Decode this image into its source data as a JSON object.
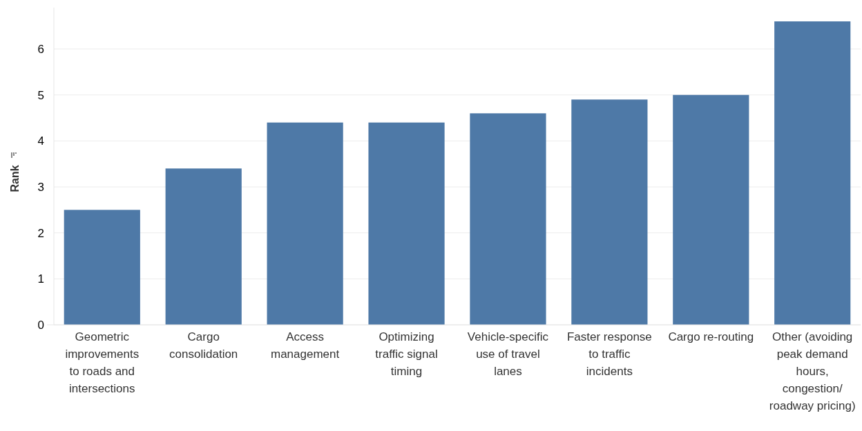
{
  "chart_data": {
    "type": "bar",
    "ylabel": "Rank",
    "categories": [
      "Geometric improvements to roads and intersections",
      "Cargo consolidation",
      "Access management",
      "Optimizing traffic signal timing",
      "Vehicle-specific use of travel lanes",
      "Faster response to traffic incidents",
      "Cargo re-routing",
      "Other (avoiding peak demand hours, congestion/roadway pricing)"
    ],
    "values": [
      2.5,
      3.4,
      4.4,
      4.4,
      4.6,
      4.9,
      5.0,
      6.6
    ],
    "color": "#4e79a7",
    "ylim": [
      0,
      6.9
    ],
    "yticks": [
      0,
      1,
      2,
      3,
      4,
      5,
      6
    ],
    "grid": "y"
  }
}
